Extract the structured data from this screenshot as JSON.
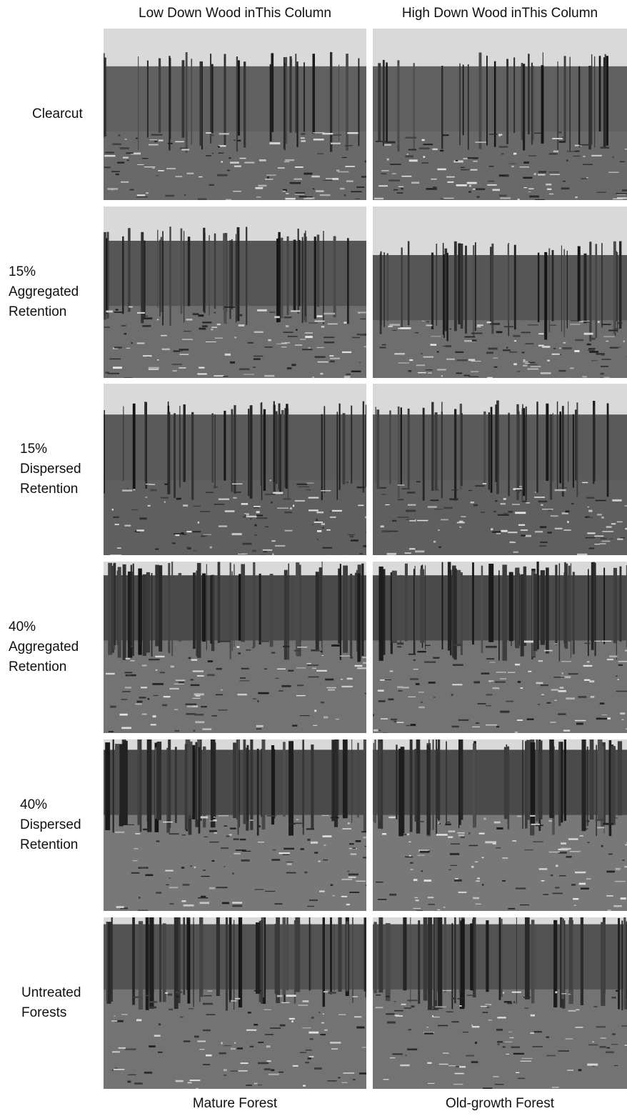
{
  "columns": [
    {
      "header": "Low Down Wood inThis Column",
      "footer": "Mature Forest"
    },
    {
      "header": "High Down Wood inThis Column",
      "footer": "Old-growth Forest"
    }
  ],
  "rows": [
    {
      "label": "Clearcut"
    },
    {
      "label": "15%\nAggregated\nRetention"
    },
    {
      "label": "15%\nDispersed\nRetention"
    },
    {
      "label": "40%\nAggregated\nRetention"
    },
    {
      "label": "40%\nDispersed\nRetention"
    },
    {
      "label": "Untreated\nForests"
    }
  ]
}
